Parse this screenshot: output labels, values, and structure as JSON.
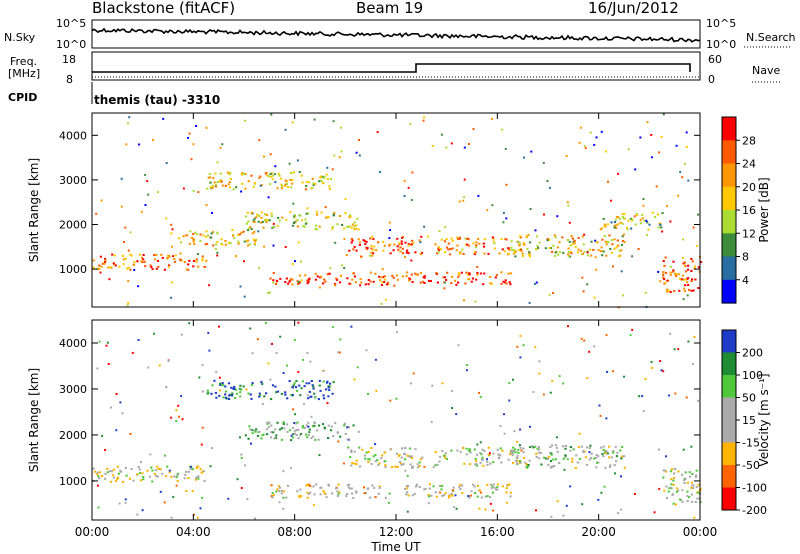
{
  "header": {
    "station": "Blackstone (fitACF)",
    "beam": "Beam 19",
    "date": "16/Jun/2012"
  },
  "sky_panel": {
    "left_label": "N.Sky",
    "right_label": "N.Search",
    "left_ticks": [
      "10^5",
      "10^0"
    ],
    "right_ticks": [
      "10^5",
      "10^0"
    ]
  },
  "freq_panel": {
    "label_line1": "Freq.",
    "label_line2": "[MHz]",
    "left_ticks": [
      "18",
      "8"
    ],
    "right_ticks": [
      "60",
      "0"
    ],
    "right_label": "Nave"
  },
  "cpid": {
    "label": "CPID",
    "program": "themis (tau) -3310"
  },
  "chart_data": [
    {
      "type": "heatmap",
      "name": "power",
      "ylabel": "Slant Range [km]",
      "yticks": [
        "1000",
        "2000",
        "3000",
        "4000"
      ],
      "ylim": [
        150,
        4500
      ],
      "colorbar_label": "Power [dB]",
      "colorbar_ticks": [
        "28",
        "24",
        "20",
        "16",
        "12",
        "8",
        "4"
      ],
      "colorbar_colors": [
        "#ff0000",
        "#ff5a00",
        "#ff9600",
        "#ffc800",
        "#aadc32",
        "#3c8c3c",
        "#286ea0",
        "#0000ff"
      ],
      "bands": [
        {
          "x": [
            0.0,
            4.5
          ],
          "y": [
            1000,
            1350
          ],
          "level": 0.75
        },
        {
          "x": [
            3.0,
            6.5
          ],
          "y": [
            1550,
            1900
          ],
          "level": 0.6
        },
        {
          "x": [
            4.5,
            9.5
          ],
          "y": [
            2800,
            3200
          ],
          "level": 0.55
        },
        {
          "x": [
            6.0,
            10.5
          ],
          "y": [
            1900,
            2300
          ],
          "level": 0.5
        },
        {
          "x": [
            10.0,
            13.0
          ],
          "y": [
            1300,
            1750
          ],
          "level": 0.8
        },
        {
          "x": [
            13.5,
            17.0
          ],
          "y": [
            1350,
            1750
          ],
          "level": 0.7
        },
        {
          "x": [
            7.0,
            16.5
          ],
          "y": [
            650,
            950
          ],
          "level": 0.85
        },
        {
          "x": [
            16.5,
            21.0
          ],
          "y": [
            1300,
            1800
          ],
          "level": 0.55
        },
        {
          "x": [
            20.0,
            22.5
          ],
          "y": [
            1900,
            2300
          ],
          "level": 0.45
        },
        {
          "x": [
            22.5,
            24.0
          ],
          "y": [
            500,
            1300
          ],
          "level": 0.8
        }
      ]
    },
    {
      "type": "heatmap",
      "name": "velocity",
      "ylabel": "Slant Range [km]",
      "yticks": [
        "1000",
        "2000",
        "3000",
        "4000"
      ],
      "ylim": [
        150,
        4500
      ],
      "xlabel": "Time UT",
      "xticks": [
        "00:00",
        "04:00",
        "08:00",
        "12:00",
        "16:00",
        "20:00",
        "00:00"
      ],
      "xlim": [
        0,
        24
      ],
      "colorbar_label": "Velocity [m s⁻¹]",
      "colorbar_ticks": [
        "200",
        "100",
        "50",
        "15",
        "-15",
        "-50",
        "-100",
        "-200"
      ],
      "colorbar_colors": [
        "#1e3cc8",
        "#1e8c32",
        "#50c83c",
        "#aaaaaa",
        "#aaaaaa",
        "#ffb400",
        "#ff6400",
        "#ff0000"
      ],
      "bands": [
        {
          "x": [
            0.0,
            4.5
          ],
          "y": [
            1000,
            1350
          ],
          "level": 0.5
        },
        {
          "x": [
            4.5,
            9.5
          ],
          "y": [
            2800,
            3200
          ],
          "level": 0.9
        },
        {
          "x": [
            6.0,
            10.5
          ],
          "y": [
            1900,
            2300
          ],
          "level": 0.65
        },
        {
          "x": [
            10.0,
            13.0
          ],
          "y": [
            1300,
            1750
          ],
          "level": 0.5
        },
        {
          "x": [
            13.5,
            17.0
          ],
          "y": [
            1350,
            1750
          ],
          "level": 0.5
        },
        {
          "x": [
            7.0,
            16.5
          ],
          "y": [
            650,
            950
          ],
          "level": 0.45
        },
        {
          "x": [
            16.5,
            21.0
          ],
          "y": [
            1300,
            1800
          ],
          "level": 0.55
        },
        {
          "x": [
            22.5,
            24.0
          ],
          "y": [
            500,
            1300
          ],
          "level": 0.5
        }
      ]
    }
  ]
}
